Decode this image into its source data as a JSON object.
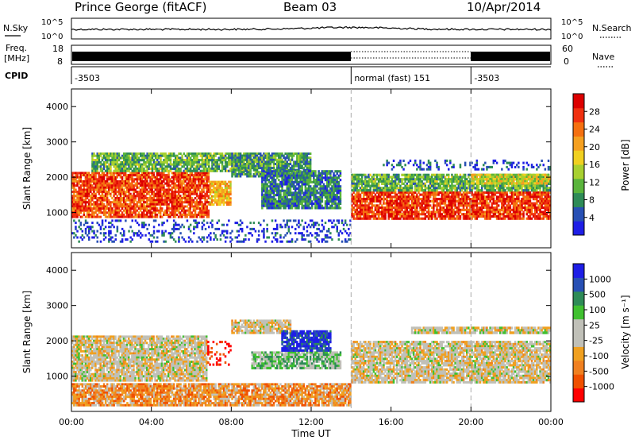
{
  "header": {
    "title": "Prince George (fitACF)",
    "beam": "Beam 03",
    "date": "10/Apr/2014"
  },
  "strips": {
    "nsky_label": "N.Sky",
    "nsearch_label": "N.Search",
    "noise_ticks": [
      "10^5",
      "10^0"
    ],
    "freq_label": "Freq.",
    "freq_unit": "[MHz]",
    "freq_ticks": [
      "18",
      "8"
    ],
    "nave_label": "Nave",
    "nave_ticks": [
      "60",
      "0"
    ],
    "cpid_label": "CPID",
    "cpid_segments": [
      {
        "start": 0,
        "end": 14,
        "label": "-3503"
      },
      {
        "start": 14,
        "end": 20,
        "label": "normal (fast) 151"
      },
      {
        "start": 20,
        "end": 24,
        "label": "-3503"
      }
    ]
  },
  "colors": {
    "power": [
      "#1e1ee6",
      "#2850b4",
      "#2e8b57",
      "#5ab43c",
      "#a8d030",
      "#f0d020",
      "#f5a020",
      "#f57010",
      "#f03010",
      "#dc0000"
    ],
    "velocity": [
      "#ff0000",
      "#f05000",
      "#f08020",
      "#f0a020",
      "#c0c0b8",
      "#c0c0b8",
      "#40c030",
      "#2e8b57",
      "#2850b4",
      "#1e1ee6"
    ]
  },
  "chart_data": [
    {
      "type": "heatmap",
      "name": "power",
      "xlabel": "",
      "ylabel": "Slant Range [km]",
      "xlim": [
        0,
        24
      ],
      "ylim": [
        0,
        4500
      ],
      "yticks": [
        1000,
        2000,
        3000,
        4000
      ],
      "colorbar_label": "Power [dB]",
      "colorbar_ticks": [
        "4",
        "8",
        "12",
        "16",
        "20",
        "24",
        "28"
      ],
      "colorbar_range": [
        0,
        32
      ],
      "regions": [
        {
          "t0": 0.0,
          "t1": 6.9,
          "r0": 850,
          "r1": 2150,
          "level": 0.82
        },
        {
          "t0": 6.9,
          "t1": 8.0,
          "r0": 1200,
          "r1": 1900,
          "level": 0.62
        },
        {
          "t0": 1.0,
          "t1": 9.0,
          "r0": 2150,
          "r1": 2700,
          "level": 0.35
        },
        {
          "t0": 8.0,
          "t1": 12.0,
          "r0": 2000,
          "r1": 2700,
          "level": 0.28
        },
        {
          "t0": 9.5,
          "t1": 13.5,
          "r0": 1100,
          "r1": 2200,
          "level": 0.22
        },
        {
          "t0": 14.0,
          "t1": 24.0,
          "r0": 800,
          "r1": 1600,
          "level": 0.85
        },
        {
          "t0": 14.0,
          "t1": 24.0,
          "r0": 1600,
          "r1": 2100,
          "level": 0.35
        },
        {
          "t0": 15.5,
          "t1": 24.0,
          "r0": 2200,
          "r1": 2500,
          "level": 0.12
        },
        {
          "t0": 20.0,
          "t1": 24.0,
          "r0": 1800,
          "r1": 2100,
          "level": 0.5
        },
        {
          "t0": 0.0,
          "t1": 14.0,
          "r0": 150,
          "r1": 800,
          "level": 0.1
        }
      ]
    },
    {
      "type": "heatmap",
      "name": "velocity",
      "xlabel": "Time UT",
      "ylabel": "Slant Range [km]",
      "xlim": [
        0,
        24
      ],
      "ylim": [
        0,
        4500
      ],
      "yticks": [
        1000,
        2000,
        3000,
        4000
      ],
      "xticks": [
        "00:00",
        "04:00",
        "08:00",
        "12:00",
        "16:00",
        "20:00",
        "00:00"
      ],
      "colorbar_label": "Velocity [m s⁻¹]",
      "colorbar_ticks": [
        "-1000",
        "-500",
        "-100",
        "-25",
        "25",
        "100",
        "500",
        "1000"
      ],
      "colorbar_range": [
        -1000,
        1000
      ],
      "regions": [
        {
          "t0": 0.0,
          "t1": 6.8,
          "r0": 850,
          "r1": 2150,
          "level": 0.46
        },
        {
          "t0": 6.8,
          "t1": 8.0,
          "r0": 1300,
          "r1": 2000,
          "level": 0.04
        },
        {
          "t0": 8.0,
          "t1": 11.0,
          "r0": 2200,
          "r1": 2600,
          "level": 0.45
        },
        {
          "t0": 9.0,
          "t1": 13.5,
          "r0": 1200,
          "r1": 1700,
          "level": 0.62
        },
        {
          "t0": 10.5,
          "t1": 13.0,
          "r0": 1700,
          "r1": 2300,
          "level": 0.92
        },
        {
          "t0": 14.0,
          "t1": 24.0,
          "r0": 800,
          "r1": 2000,
          "level": 0.46
        },
        {
          "t0": 17.0,
          "t1": 24.0,
          "r0": 2200,
          "r1": 2400,
          "level": 0.46
        },
        {
          "t0": 0.0,
          "t1": 14.0,
          "r0": 150,
          "r1": 800,
          "level": 0.3
        }
      ]
    }
  ]
}
